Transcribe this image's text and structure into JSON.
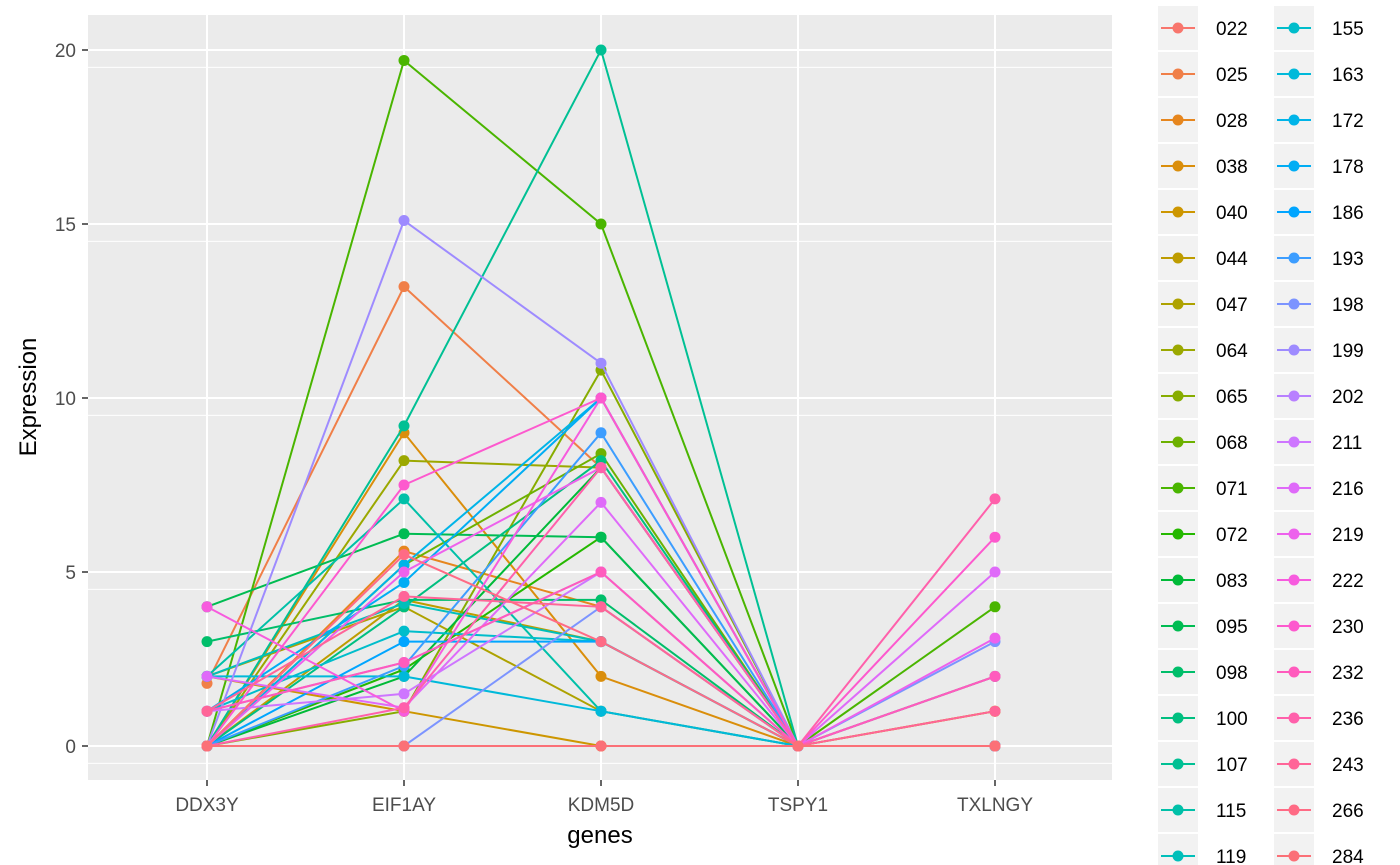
{
  "chart_data": {
    "type": "line",
    "xlabel": "genes",
    "ylabel": "Expression",
    "categories": [
      "DDX3Y",
      "EIF1AY",
      "KDM5D",
      "TSPY1",
      "TXLNGY"
    ],
    "ylim": [
      -1,
      21
    ],
    "yticks": [
      0,
      5,
      10,
      15,
      20
    ],
    "grid": true,
    "legend_position": "right",
    "series": [
      {
        "name": "022",
        "color": "#F8766D",
        "values": [
          0,
          0,
          0,
          0,
          0
        ]
      },
      {
        "name": "025",
        "color": "#F07F48",
        "values": [
          1.8,
          13.2,
          8,
          0,
          0
        ]
      },
      {
        "name": "028",
        "color": "#E6861E",
        "values": [
          0,
          5.6,
          4,
          0,
          1
        ]
      },
      {
        "name": "038",
        "color": "#DA8E0B",
        "values": [
          0,
          9,
          2,
          0,
          0
        ]
      },
      {
        "name": "040",
        "color": "#CD9600",
        "values": [
          2,
          1,
          0,
          0,
          0
        ]
      },
      {
        "name": "044",
        "color": "#BE9C00",
        "values": [
          0,
          4.2,
          3,
          0,
          1
        ]
      },
      {
        "name": "047",
        "color": "#AEA200",
        "values": [
          2,
          4,
          1,
          0,
          0
        ]
      },
      {
        "name": "064",
        "color": "#9BA800",
        "values": [
          0,
          8.2,
          8,
          0,
          0
        ]
      },
      {
        "name": "065",
        "color": "#87AC00",
        "values": [
          0,
          1,
          10.8,
          0,
          0
        ]
      },
      {
        "name": "068",
        "color": "#6DB100",
        "values": [
          0,
          5.2,
          8.4,
          0,
          2
        ]
      },
      {
        "name": "071",
        "color": "#4AB500",
        "values": [
          0,
          19.7,
          15,
          0,
          4
        ]
      },
      {
        "name": "072",
        "color": "#25B800",
        "values": [
          0,
          2.2,
          6,
          0,
          0
        ]
      },
      {
        "name": "083",
        "color": "#00BA38",
        "values": [
          0,
          2,
          8,
          0,
          0
        ]
      },
      {
        "name": "095",
        "color": "#00BC52",
        "values": [
          4,
          6.1,
          6,
          0,
          0
        ]
      },
      {
        "name": "098",
        "color": "#00BE6A",
        "values": [
          3,
          4.2,
          4.2,
          0,
          0
        ]
      },
      {
        "name": "100",
        "color": "#00BF80",
        "values": [
          0,
          4,
          8.2,
          0,
          0
        ]
      },
      {
        "name": "107",
        "color": "#00C094",
        "values": [
          0,
          9.2,
          20,
          0,
          0
        ]
      },
      {
        "name": "115",
        "color": "#00C0A8",
        "values": [
          2,
          7.1,
          1,
          0,
          2
        ]
      },
      {
        "name": "119",
        "color": "#00BFBA",
        "values": [
          2,
          4.1,
          3,
          0,
          0
        ]
      },
      {
        "name": "155",
        "color": "#00BDCB",
        "values": [
          1,
          3.3,
          3,
          0,
          0
        ]
      },
      {
        "name": "163",
        "color": "#00B9DA",
        "values": [
          2,
          2,
          1,
          0,
          0
        ]
      },
      {
        "name": "172",
        "color": "#00B4E8",
        "values": [
          0,
          5.2,
          10,
          0,
          0
        ]
      },
      {
        "name": "178",
        "color": "#00ADF4",
        "values": [
          1,
          4.7,
          10,
          0,
          0
        ]
      },
      {
        "name": "186",
        "color": "#00A5FF",
        "values": [
          0,
          3,
          3,
          0,
          0
        ]
      },
      {
        "name": "193",
        "color": "#3C9DFF",
        "values": [
          0,
          2.3,
          9,
          0,
          0
        ]
      },
      {
        "name": "198",
        "color": "#7C94FF",
        "values": [
          0,
          0,
          4,
          0,
          3
        ]
      },
      {
        "name": "199",
        "color": "#9E8BFF",
        "values": [
          0,
          15.1,
          11,
          0,
          0
        ]
      },
      {
        "name": "202",
        "color": "#B880FF",
        "values": [
          1,
          2.4,
          5,
          0,
          0
        ]
      },
      {
        "name": "211",
        "color": "#CE76FF",
        "values": [
          1,
          1.5,
          5,
          0,
          0
        ]
      },
      {
        "name": "216",
        "color": "#DF6AF9",
        "values": [
          2,
          1.1,
          7,
          0,
          5
        ]
      },
      {
        "name": "219",
        "color": "#ED61EC",
        "values": [
          0,
          5,
          8,
          0,
          3.1
        ]
      },
      {
        "name": "222",
        "color": "#F75BDE",
        "values": [
          4,
          1,
          10,
          0,
          2
        ]
      },
      {
        "name": "230",
        "color": "#FD59CE",
        "values": [
          0,
          7.5,
          10,
          0,
          6
        ]
      },
      {
        "name": "232",
        "color": "#FF5BBD",
        "values": [
          1,
          2.4,
          5,
          0,
          2
        ]
      },
      {
        "name": "236",
        "color": "#FF60AB",
        "values": [
          0,
          1.1,
          8,
          0,
          7.1
        ]
      },
      {
        "name": "243",
        "color": "#FF6598",
        "values": [
          1,
          4.3,
          4,
          0,
          1
        ]
      },
      {
        "name": "266",
        "color": "#FF6B85",
        "values": [
          0,
          5.5,
          3,
          0,
          0
        ]
      },
      {
        "name": "284",
        "color": "#FB7077",
        "values": [
          0,
          0,
          0,
          0,
          0
        ]
      }
    ]
  }
}
